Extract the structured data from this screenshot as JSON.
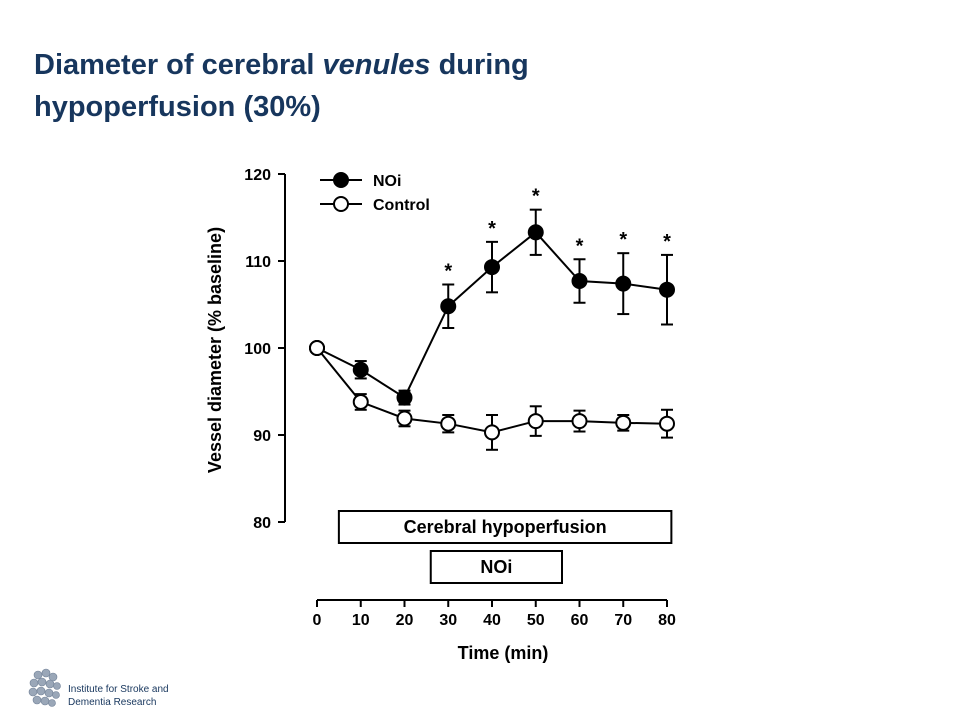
{
  "slide": {
    "title_part1": "Diameter of cerebral ",
    "title_italic": "venules",
    "title_part2": " during",
    "title_line2": "hypoperfusion (30%)",
    "title_color": "#17365d"
  },
  "footer": {
    "institute_line1": "Institute for Stroke and",
    "institute_line2": "Dementia Research",
    "logo_icon": "brain-logo-icon"
  },
  "chart_data": {
    "type": "line",
    "xlabel": "Time (min)",
    "ylabel": "Vessel diameter (% baseline)",
    "xlim": [
      0,
      80
    ],
    "ylim": [
      80,
      120
    ],
    "x_ticks": [
      0,
      10,
      20,
      30,
      40,
      50,
      60,
      70,
      80
    ],
    "y_ticks": [
      80,
      90,
      100,
      110,
      120
    ],
    "grid": false,
    "legend_position": "top-left",
    "x": [
      0,
      10,
      20,
      30,
      40,
      50,
      60,
      70,
      80
    ],
    "series": [
      {
        "name": "NOi",
        "marker": "filled-circle",
        "values": [
          100,
          97.5,
          94.3,
          104.8,
          109.3,
          113.3,
          107.7,
          107.4,
          106.7
        ],
        "error": [
          0,
          1.0,
          0.8,
          2.5,
          2.9,
          2.6,
          2.5,
          3.5,
          4.0
        ],
        "significant": [
          false,
          false,
          false,
          true,
          true,
          true,
          true,
          true,
          true
        ]
      },
      {
        "name": "Control",
        "marker": "open-circle",
        "values": [
          100,
          93.8,
          91.9,
          91.3,
          90.3,
          91.6,
          91.6,
          91.4,
          91.3
        ],
        "error": [
          0,
          0.9,
          0.9,
          1.0,
          2.0,
          1.7,
          1.2,
          0.9,
          1.6
        ],
        "significant": [
          false,
          false,
          false,
          false,
          false,
          false,
          false,
          false,
          false
        ]
      }
    ],
    "significance_marker": "*",
    "annotations": [
      {
        "label": "Cerebral hypoperfusion",
        "x_start": 5,
        "x_end": 81
      },
      {
        "label": "NOi",
        "x_start": 26,
        "x_end": 56
      }
    ]
  }
}
